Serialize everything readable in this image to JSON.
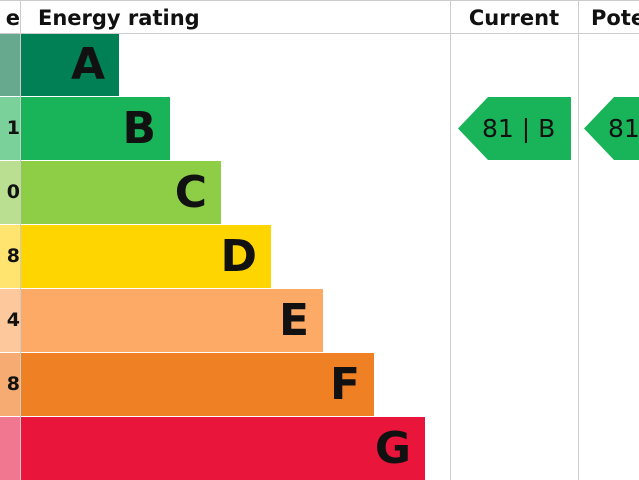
{
  "chart_data": {
    "type": "bar",
    "headers": {
      "score": "e",
      "rating": "Energy rating",
      "current": "Current",
      "potential": "Pote"
    },
    "bands": [
      {
        "letter": "A",
        "score_fragment": "",
        "color": "#008054",
        "tint": "#66a98e"
      },
      {
        "letter": "B",
        "score_fragment": "1",
        "color": "#19b459",
        "tint": "#7ad19a"
      },
      {
        "letter": "C",
        "score_fragment": "0",
        "color": "#8dce46",
        "tint": "#badf90"
      },
      {
        "letter": "D",
        "score_fragment": "8",
        "color": "#ffd500",
        "tint": "#ffe570"
      },
      {
        "letter": "E",
        "score_fragment": "4",
        "color": "#fcaa65",
        "tint": "#fdc89c"
      },
      {
        "letter": "F",
        "score_fragment": "8",
        "color": "#ef8023",
        "tint": "#f5ab72"
      },
      {
        "letter": "G",
        "score_fragment": "",
        "color": "#e9153b",
        "tint": "#f17791"
      }
    ],
    "current": {
      "score": 81,
      "band": "B",
      "label": "81 | B",
      "color": "#19b459"
    },
    "potential": {
      "score": 81,
      "label": "81",
      "color": "#19b459"
    }
  }
}
